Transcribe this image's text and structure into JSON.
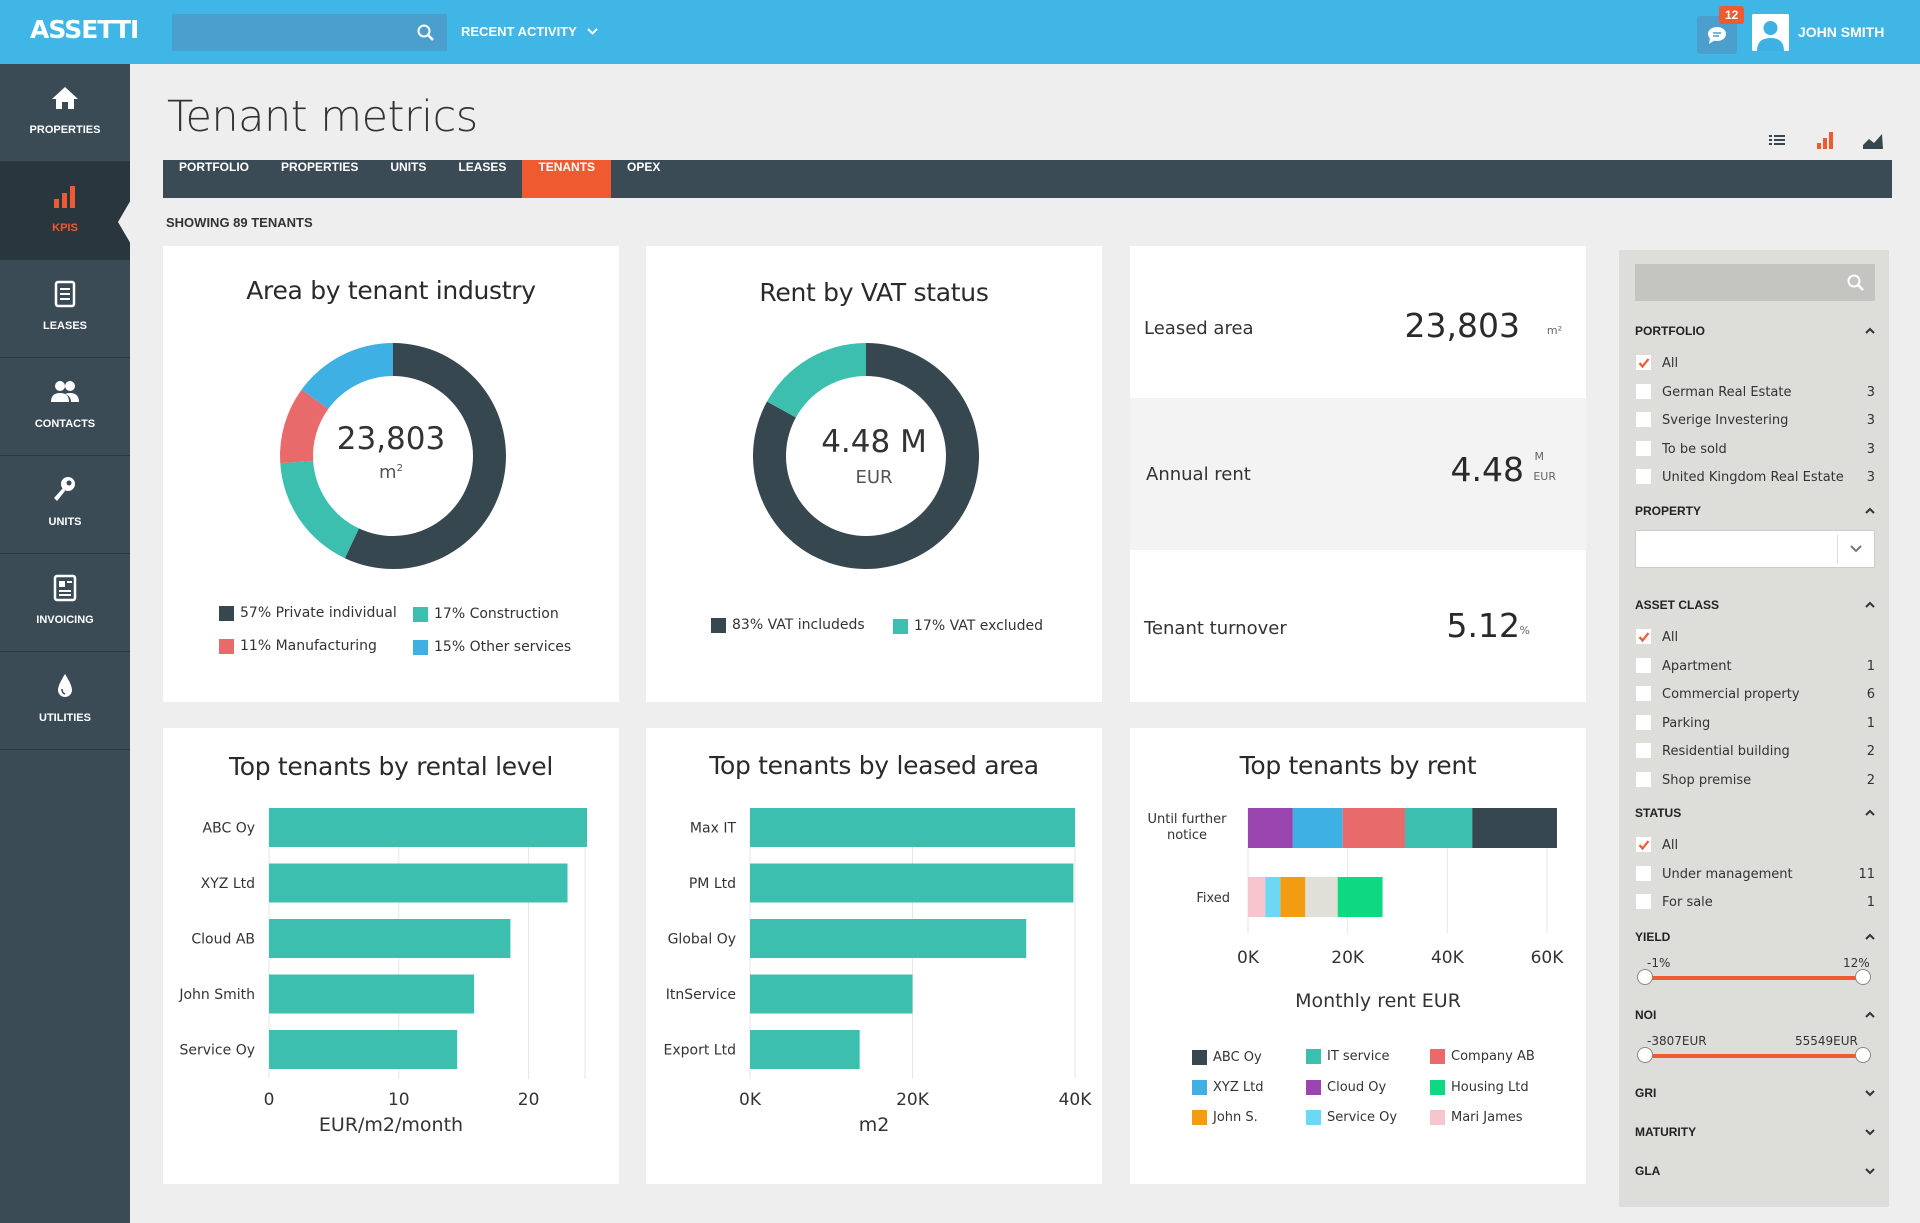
{
  "app": {
    "name": "ASSETTI"
  },
  "header": {
    "search_placeholder": "",
    "recent_activity": "RECENT ACTIVITY",
    "notification_count": "12",
    "user_name": "JOHN SMITH"
  },
  "sidebar": {
    "items": [
      {
        "label": "PROPERTIES",
        "icon": "home-icon"
      },
      {
        "label": "KPIS",
        "icon": "bar-chart-icon",
        "active": true
      },
      {
        "label": "LEASES",
        "icon": "document-icon"
      },
      {
        "label": "CONTACTS",
        "icon": "people-icon"
      },
      {
        "label": "UNITS",
        "icon": "key-icon"
      },
      {
        "label": "INVOICING",
        "icon": "invoice-icon"
      },
      {
        "label": "UTILITIES",
        "icon": "drop-icon"
      }
    ]
  },
  "page": {
    "title": "Tenant metrics",
    "showing": "SHOWING 89 TENANTS"
  },
  "tabs": [
    {
      "label": "PORTFOLIO"
    },
    {
      "label": "PROPERTIES"
    },
    {
      "label": "UNITS"
    },
    {
      "label": "LEASES"
    },
    {
      "label": "TENANTS",
      "active": true
    },
    {
      "label": "OPEX"
    }
  ],
  "colors": {
    "accent": "#ef5a30",
    "topbar": "#3fb6e6",
    "sidebar": "#3a4b55",
    "dark": "#37474f",
    "teal": "#3dbfb0",
    "coral": "#e86a6a",
    "blue": "#3eb0e3"
  },
  "metrics": [
    {
      "label": "Leased area",
      "value": "23,803",
      "unit_top": "m²",
      "unit_bottom": ""
    },
    {
      "label": "Annual rent",
      "value": "4.48",
      "unit_top": "M",
      "unit_bottom": "EUR"
    },
    {
      "label": "Tenant turnover",
      "value": "5.12",
      "unit_top": "%",
      "unit_bottom": ""
    }
  ],
  "chart_data": [
    {
      "type": "pie",
      "title": "Area by tenant industry",
      "center_value": "23,803",
      "center_unit": "m",
      "center_unit_sup": "2",
      "slices": [
        {
          "label": "57% Private individual",
          "value": 57,
          "color": "#37474f"
        },
        {
          "label": "17% Construction",
          "value": 17,
          "color": "#3dbfb0"
        },
        {
          "label": "11% Manufacturing",
          "value": 11,
          "color": "#e86a6a"
        },
        {
          "label": "15% Other services",
          "value": 15,
          "color": "#3eb0e3"
        }
      ]
    },
    {
      "type": "pie",
      "title": "Rent by VAT status",
      "center_value": "4.48 M",
      "center_unit": "EUR",
      "slices": [
        {
          "label": "83% VAT includeds",
          "value": 83,
          "color": "#37474f"
        },
        {
          "label": "17% VAT excluded",
          "value": 17,
          "color": "#3dbfb0"
        }
      ]
    },
    {
      "type": "bar",
      "orientation": "horizontal",
      "title": "Top tenants by rental level",
      "categories": [
        "ABC Oy",
        "XYZ Ltd",
        "Cloud AB",
        "John Smith",
        "Service Oy"
      ],
      "values": [
        24.5,
        23,
        18.6,
        15.8,
        14.5
      ],
      "xlim": [
        0,
        24.5
      ],
      "ticks": [
        "0",
        "10",
        "20"
      ],
      "tick_values": [
        0,
        10,
        20
      ],
      "xlabel": "EUR/m2/month",
      "color": "#3dbfb0"
    },
    {
      "type": "bar",
      "orientation": "horizontal",
      "title": "Top tenants by leased area",
      "categories": [
        "Max IT",
        "PM Ltd",
        "Global Oy",
        "ItnService",
        "Export Ltd"
      ],
      "values": [
        40000,
        39800,
        34000,
        20000,
        13500
      ],
      "xlim": [
        0,
        40000
      ],
      "ticks": [
        "0K",
        "20K",
        "40K"
      ],
      "tick_values": [
        0,
        20000,
        40000
      ],
      "xlabel": "m2",
      "color": "#3dbfb0"
    },
    {
      "type": "bar",
      "orientation": "horizontal",
      "stacked": true,
      "title": "Top tenants by rent",
      "categories": [
        "Until further notice",
        "Fixed"
      ],
      "xlim": [
        0,
        60000
      ],
      "ticks": [
        "0K",
        "20K",
        "40K",
        "60K"
      ],
      "tick_values": [
        0,
        20000,
        40000,
        60000
      ],
      "xlabel": "Monthly rent EUR",
      "series": [
        {
          "name": "ABC Oy",
          "color": "#37474f",
          "values": [
            17000,
            0
          ]
        },
        {
          "name": "XYZ Ltd",
          "color": "#3eb0e3",
          "values": [
            10000,
            0
          ]
        },
        {
          "name": "John S.",
          "color": "#f39c12",
          "values": [
            0,
            5000
          ]
        },
        {
          "name": "IT service",
          "color": "#3dbfb0",
          "values": [
            13500,
            0
          ]
        },
        {
          "name": "Cloud Oy",
          "color": "#9b45b0",
          "values": [
            9000,
            0
          ]
        },
        {
          "name": "Service Oy",
          "color": "#6dd8f3",
          "values": [
            0,
            3000
          ]
        },
        {
          "name": "Company AB",
          "color": "#e86a6a",
          "values": [
            12500,
            0
          ]
        },
        {
          "name": "Housing Ltd",
          "color": "#0fd882",
          "values": [
            0,
            9000
          ]
        },
        {
          "name": "Mari James",
          "color": "#f7c5ce",
          "values": [
            0,
            3500
          ]
        }
      ],
      "stack_order": [
        [
          "Cloud Oy",
          "XYZ Ltd",
          "Company AB",
          "IT service",
          "ABC Oy"
        ],
        [
          "Mari James",
          "Service Oy",
          "John S.",
          "Unlabeled",
          "Housing Ltd"
        ]
      ],
      "extra_segments": [
        {
          "row": 1,
          "name": "Unlabeled",
          "color": "#e0e0d8",
          "value": 6500
        }
      ]
    }
  ],
  "filters": {
    "search_placeholder": "",
    "portfolio": {
      "title": "PORTFOLIO",
      "options": [
        {
          "label": "All",
          "checked": true,
          "count": ""
        },
        {
          "label": "German Real Estate",
          "checked": false,
          "count": "3"
        },
        {
          "label": "Sverige Investering",
          "checked": false,
          "count": "3"
        },
        {
          "label": "To be sold",
          "checked": false,
          "count": "3"
        },
        {
          "label": "United Kingdom Real Estate",
          "checked": false,
          "count": "3"
        }
      ]
    },
    "property": {
      "title": "PROPERTY",
      "selected": ""
    },
    "asset_class": {
      "title": "ASSET CLASS",
      "options": [
        {
          "label": "All",
          "checked": true,
          "count": ""
        },
        {
          "label": "Apartment",
          "checked": false,
          "count": "1"
        },
        {
          "label": "Commercial property",
          "checked": false,
          "count": "6"
        },
        {
          "label": "Parking",
          "checked": false,
          "count": "1"
        },
        {
          "label": "Residential building",
          "checked": false,
          "count": "2"
        },
        {
          "label": "Shop premise",
          "checked": false,
          "count": "2"
        }
      ]
    },
    "status": {
      "title": "STATUS",
      "options": [
        {
          "label": "All",
          "checked": true,
          "count": ""
        },
        {
          "label": "Under management",
          "checked": false,
          "count": "11"
        },
        {
          "label": "For sale",
          "checked": false,
          "count": "1"
        }
      ]
    },
    "yield": {
      "title": "YIELD",
      "min": "-1%",
      "max": "12%"
    },
    "noi": {
      "title": "NOI",
      "min": "-3807EUR",
      "max": "55549EUR"
    },
    "collapsed": [
      {
        "title": "GRI"
      },
      {
        "title": "MATURITY"
      },
      {
        "title": "GLA"
      }
    ]
  }
}
